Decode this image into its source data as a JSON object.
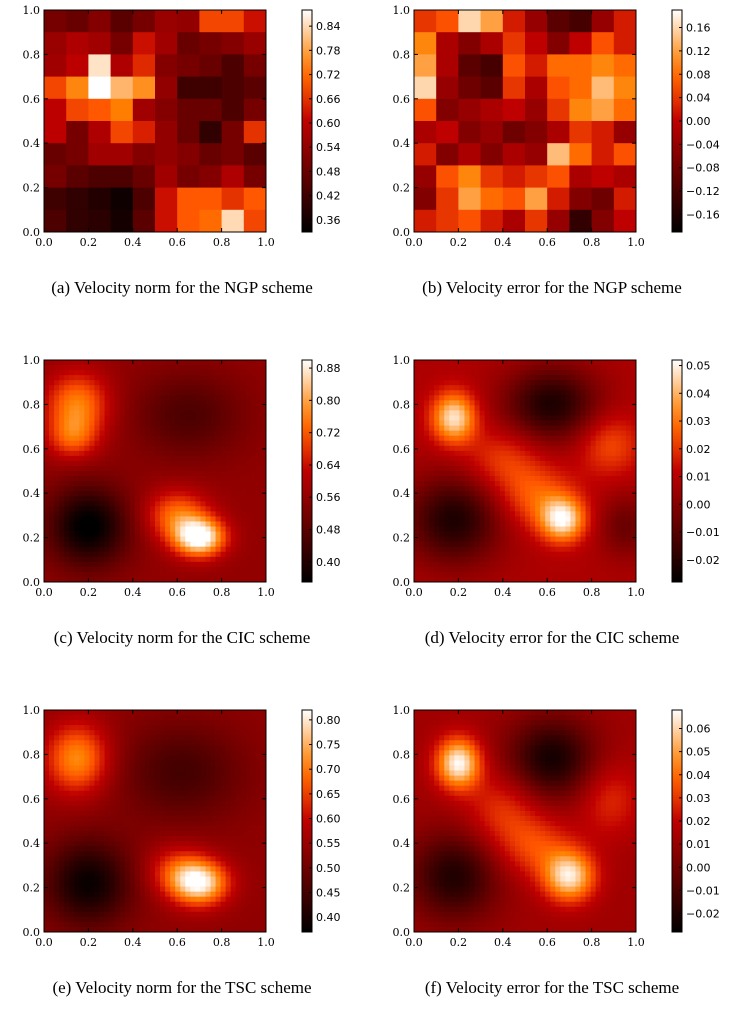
{
  "figure": {
    "panels": [
      {
        "caption": "(a) Velocity norm for the NGP scheme",
        "colorbar_ticks": [
          "0.84",
          "0.78",
          "0.72",
          "0.66",
          "0.60",
          "0.54",
          "0.48",
          "0.42",
          "0.36"
        ],
        "axis_ticks": [
          "0.0",
          "0.2",
          "0.4",
          "0.6",
          "0.8",
          "1.0"
        ]
      },
      {
        "caption": "(b) Velocity error for the NGP scheme",
        "colorbar_ticks": [
          "0.16",
          "0.12",
          "0.08",
          "0.04",
          "0.00",
          "−0.04",
          "−0.08",
          "−0.12",
          "−0.16"
        ],
        "axis_ticks": [
          "0.0",
          "0.2",
          "0.4",
          "0.6",
          "0.8",
          "1.0"
        ]
      },
      {
        "caption": "(c) Velocity norm for the CIC scheme",
        "colorbar_ticks": [
          "0.88",
          "0.80",
          "0.72",
          "0.64",
          "0.56",
          "0.48",
          "0.40"
        ],
        "axis_ticks": [
          "0.0",
          "0.2",
          "0.4",
          "0.6",
          "0.8",
          "1.0"
        ]
      },
      {
        "caption": "(d) Velocity error for the CIC scheme",
        "colorbar_ticks": [
          "0.05",
          "0.04",
          "0.03",
          "0.02",
          "0.01",
          "0.00",
          "−0.01",
          "−0.02"
        ],
        "axis_ticks": [
          "0.0",
          "0.2",
          "0.4",
          "0.6",
          "0.8",
          "1.0"
        ]
      },
      {
        "caption": "(e) Velocity norm for the TSC scheme",
        "colorbar_ticks": [
          "0.80",
          "0.75",
          "0.70",
          "0.65",
          "0.60",
          "0.55",
          "0.50",
          "0.45",
          "0.40"
        ],
        "axis_ticks": [
          "0.0",
          "0.2",
          "0.4",
          "0.6",
          "0.8",
          "1.0"
        ]
      },
      {
        "caption": "(f) Velocity error for the TSC scheme",
        "colorbar_ticks": [
          "0.06",
          "0.05",
          "0.04",
          "0.03",
          "0.02",
          "0.01",
          "0.00",
          "−0.01",
          "−0.02"
        ],
        "axis_ticks": [
          "0.0",
          "0.2",
          "0.4",
          "0.6",
          "0.8",
          "1.0"
        ]
      }
    ]
  },
  "chart_data": [
    {
      "type": "heatmap",
      "title": "(a) Velocity norm for the NGP scheme",
      "colormap": "gist_heat",
      "xlim": [
        0,
        1
      ],
      "ylim": [
        0,
        1
      ],
      "xticks": [
        0.0,
        0.2,
        0.4,
        0.6,
        0.8,
        1.0
      ],
      "yticks": [
        0.0,
        0.2,
        0.4,
        0.6,
        0.8,
        1.0
      ],
      "colorbar_range": [
        0.33,
        0.88
      ],
      "colorbar_ticks": [
        0.84,
        0.78,
        0.72,
        0.66,
        0.6,
        0.54,
        0.48,
        0.42,
        0.36
      ],
      "grid_rows_top_to_bottom": [
        [
          0.5,
          0.48,
          0.52,
          0.46,
          0.5,
          0.55,
          0.54,
          0.68,
          0.68,
          0.62
        ],
        [
          0.55,
          0.58,
          0.56,
          0.5,
          0.62,
          0.56,
          0.48,
          0.5,
          0.52,
          0.55
        ],
        [
          0.56,
          0.6,
          0.85,
          0.58,
          0.65,
          0.52,
          0.5,
          0.48,
          0.44,
          0.5
        ],
        [
          0.68,
          0.75,
          0.88,
          0.8,
          0.76,
          0.54,
          0.42,
          0.42,
          0.44,
          0.46
        ],
        [
          0.6,
          0.68,
          0.7,
          0.74,
          0.56,
          0.52,
          0.48,
          0.48,
          0.44,
          0.5
        ],
        [
          0.6,
          0.5,
          0.58,
          0.68,
          0.64,
          0.54,
          0.48,
          0.4,
          0.5,
          0.66
        ],
        [
          0.48,
          0.5,
          0.56,
          0.56,
          0.52,
          0.54,
          0.52,
          0.48,
          0.5,
          0.46
        ],
        [
          0.5,
          0.46,
          0.44,
          0.44,
          0.48,
          0.56,
          0.5,
          0.52,
          0.58,
          0.5
        ],
        [
          0.42,
          0.4,
          0.38,
          0.35,
          0.44,
          0.62,
          0.7,
          0.7,
          0.66,
          0.7
        ],
        [
          0.44,
          0.4,
          0.39,
          0.36,
          0.46,
          0.62,
          0.7,
          0.72,
          0.84,
          0.68
        ]
      ]
    },
    {
      "type": "heatmap",
      "title": "(b) Velocity error for the NGP scheme",
      "colormap": "gist_heat",
      "xlim": [
        0,
        1
      ],
      "ylim": [
        0,
        1
      ],
      "xticks": [
        0.0,
        0.2,
        0.4,
        0.6,
        0.8,
        1.0
      ],
      "yticks": [
        0.0,
        0.2,
        0.4,
        0.6,
        0.8,
        1.0
      ],
      "colorbar_range": [
        -0.19,
        0.19
      ],
      "colorbar_ticks": [
        0.16,
        0.12,
        0.08,
        0.04,
        0.0,
        -0.04,
        -0.08,
        -0.12,
        -0.16
      ],
      "grid_rows_top_to_bottom": [
        [
          0.04,
          0.06,
          0.16,
          0.12,
          0.02,
          -0.04,
          -0.1,
          -0.12,
          -0.04,
          0.02
        ],
        [
          0.1,
          -0.02,
          -0.06,
          -0.02,
          0.04,
          0.0,
          -0.06,
          0.0,
          0.06,
          0.02
        ],
        [
          0.12,
          -0.02,
          -0.1,
          -0.12,
          0.06,
          0.02,
          0.08,
          0.08,
          0.1,
          0.08
        ],
        [
          0.16,
          -0.04,
          -0.08,
          -0.1,
          0.04,
          -0.02,
          0.06,
          0.08,
          0.14,
          0.1
        ],
        [
          0.06,
          -0.06,
          -0.04,
          -0.02,
          0.0,
          -0.04,
          0.04,
          0.1,
          0.12,
          0.08
        ],
        [
          -0.02,
          0.0,
          -0.06,
          -0.04,
          -0.08,
          -0.06,
          -0.02,
          0.04,
          0.02,
          -0.04
        ],
        [
          0.02,
          -0.06,
          -0.02,
          -0.06,
          -0.02,
          -0.04,
          0.14,
          0.08,
          0.02,
          0.06
        ],
        [
          -0.04,
          0.06,
          0.1,
          0.04,
          0.02,
          0.04,
          0.06,
          -0.02,
          0.0,
          -0.02
        ],
        [
          -0.06,
          0.04,
          0.12,
          0.08,
          0.06,
          0.12,
          0.02,
          -0.06,
          -0.08,
          0.02
        ],
        [
          0.02,
          0.04,
          0.06,
          0.02,
          -0.02,
          0.04,
          -0.04,
          -0.14,
          -0.06,
          0.0
        ]
      ]
    },
    {
      "type": "heatmap",
      "title": "(c) Velocity norm for the CIC scheme",
      "colormap": "gist_heat",
      "xlim": [
        0,
        1
      ],
      "ylim": [
        0,
        1
      ],
      "xticks": [
        0.0,
        0.2,
        0.4,
        0.6,
        0.8,
        1.0
      ],
      "yticks": [
        0.0,
        0.2,
        0.4,
        0.6,
        0.8,
        1.0
      ],
      "colorbar_range": [
        0.35,
        0.9
      ],
      "colorbar_ticks": [
        0.88,
        0.8,
        0.72,
        0.64,
        0.56,
        0.48,
        0.4
      ],
      "blobs": [
        {
          "x": 0.15,
          "y": 0.8,
          "amp": 0.2,
          "sx": 0.1,
          "sy": 0.1
        },
        {
          "x": 0.13,
          "y": 0.65,
          "amp": 0.14,
          "sx": 0.08,
          "sy": 0.07
        },
        {
          "x": 0.7,
          "y": 0.2,
          "amp": 0.36,
          "sx": 0.08,
          "sy": 0.06
        },
        {
          "x": 0.6,
          "y": 0.3,
          "amp": 0.18,
          "sx": 0.1,
          "sy": 0.08
        },
        {
          "x": 0.2,
          "y": 0.25,
          "amp": -0.22,
          "sx": 0.13,
          "sy": 0.13
        },
        {
          "x": 0.65,
          "y": 0.75,
          "amp": -0.1,
          "sx": 0.18,
          "sy": 0.14
        }
      ],
      "base": 0.56
    },
    {
      "type": "heatmap",
      "title": "(d) Velocity error for the CIC scheme",
      "colormap": "gist_heat",
      "xlim": [
        0,
        1
      ],
      "ylim": [
        0,
        1
      ],
      "xticks": [
        0.0,
        0.2,
        0.4,
        0.6,
        0.8,
        1.0
      ],
      "yticks": [
        0.0,
        0.2,
        0.4,
        0.6,
        0.8,
        1.0
      ],
      "colorbar_range": [
        -0.028,
        0.052
      ],
      "colorbar_ticks": [
        0.05,
        0.04,
        0.03,
        0.02,
        0.01,
        0.0,
        -0.01,
        -0.02
      ],
      "blobs": [
        {
          "x": 0.18,
          "y": 0.74,
          "amp": 0.04,
          "sx": 0.07,
          "sy": 0.08
        },
        {
          "x": 0.67,
          "y": 0.28,
          "amp": 0.04,
          "sx": 0.07,
          "sy": 0.07
        },
        {
          "x": 0.55,
          "y": 0.38,
          "amp": 0.018,
          "sx": 0.12,
          "sy": 0.1
        },
        {
          "x": 0.88,
          "y": 0.62,
          "amp": 0.016,
          "sx": 0.1,
          "sy": 0.1
        },
        {
          "x": 0.4,
          "y": 0.55,
          "amp": 0.014,
          "sx": 0.12,
          "sy": 0.1
        },
        {
          "x": 0.62,
          "y": 0.8,
          "amp": -0.03,
          "sx": 0.15,
          "sy": 0.12
        },
        {
          "x": 0.18,
          "y": 0.28,
          "amp": -0.03,
          "sx": 0.15,
          "sy": 0.14
        },
        {
          "x": 0.95,
          "y": 0.25,
          "amp": -0.014,
          "sx": 0.08,
          "sy": 0.1
        }
      ],
      "base": 0.008
    },
    {
      "type": "heatmap",
      "title": "(e) Velocity norm for the TSC scheme",
      "colormap": "gist_heat",
      "xlim": [
        0,
        1
      ],
      "ylim": [
        0,
        1
      ],
      "xticks": [
        0.0,
        0.2,
        0.4,
        0.6,
        0.8,
        1.0
      ],
      "yticks": [
        0.0,
        0.2,
        0.4,
        0.6,
        0.8,
        1.0
      ],
      "colorbar_range": [
        0.37,
        0.82
      ],
      "colorbar_ticks": [
        0.8,
        0.75,
        0.7,
        0.65,
        0.6,
        0.55,
        0.5,
        0.45,
        0.4
      ],
      "blobs": [
        {
          "x": 0.15,
          "y": 0.78,
          "amp": 0.18,
          "sx": 0.1,
          "sy": 0.11
        },
        {
          "x": 0.7,
          "y": 0.22,
          "amp": 0.26,
          "sx": 0.09,
          "sy": 0.07
        },
        {
          "x": 0.6,
          "y": 0.28,
          "amp": 0.1,
          "sx": 0.1,
          "sy": 0.08
        },
        {
          "x": 0.2,
          "y": 0.22,
          "amp": -0.16,
          "sx": 0.14,
          "sy": 0.14
        },
        {
          "x": 0.62,
          "y": 0.72,
          "amp": -0.09,
          "sx": 0.2,
          "sy": 0.16
        }
      ],
      "base": 0.54
    },
    {
      "type": "heatmap",
      "title": "(f) Velocity error for the TSC scheme",
      "colormap": "gist_heat",
      "xlim": [
        0,
        1
      ],
      "ylim": [
        0,
        1
      ],
      "xticks": [
        0.0,
        0.2,
        0.4,
        0.6,
        0.8,
        1.0
      ],
      "yticks": [
        0.0,
        0.2,
        0.4,
        0.6,
        0.8,
        1.0
      ],
      "colorbar_range": [
        -0.028,
        0.068
      ],
      "colorbar_ticks": [
        0.06,
        0.05,
        0.04,
        0.03,
        0.02,
        0.01,
        0.0,
        -0.01,
        -0.02
      ],
      "blobs": [
        {
          "x": 0.2,
          "y": 0.76,
          "amp": 0.055,
          "sx": 0.07,
          "sy": 0.08
        },
        {
          "x": 0.7,
          "y": 0.25,
          "amp": 0.05,
          "sx": 0.08,
          "sy": 0.08
        },
        {
          "x": 0.55,
          "y": 0.38,
          "amp": 0.02,
          "sx": 0.12,
          "sy": 0.1
        },
        {
          "x": 0.4,
          "y": 0.55,
          "amp": 0.018,
          "sx": 0.12,
          "sy": 0.12
        },
        {
          "x": 0.88,
          "y": 0.6,
          "amp": 0.016,
          "sx": 0.1,
          "sy": 0.12
        },
        {
          "x": 0.62,
          "y": 0.78,
          "amp": -0.035,
          "sx": 0.14,
          "sy": 0.13
        },
        {
          "x": 0.18,
          "y": 0.25,
          "amp": -0.032,
          "sx": 0.14,
          "sy": 0.14
        }
      ],
      "base": 0.012
    }
  ]
}
